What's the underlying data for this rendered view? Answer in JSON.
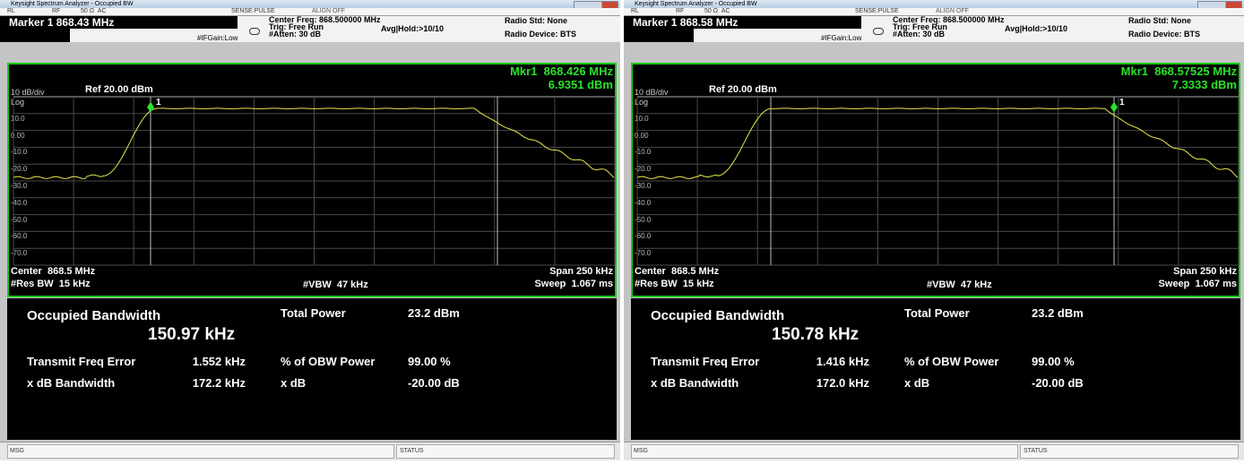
{
  "windows": [
    {
      "title": "Keysight Spectrum Analyzer - Occupied BW",
      "status_row": [
        "RL",
        "RF",
        "50 Ω  AC",
        "SENSE:PULSE",
        "ALIGN OFF"
      ],
      "marker": "Marker 1 868.43 MHz",
      "center_freq": "Center Freq: 868.500000 MHz",
      "trig": "Trig: Free Run",
      "atten": "#Atten: 30 dB",
      "avg_hold": "Avg|Hold:>10/10",
      "if_gain": "#IFGain:Low",
      "radio_std": "Radio Std: None",
      "radio_device": "Radio Device: BTS",
      "scale": "10 dB/div",
      "ref": "Ref 20.00 dBm",
      "log": "Log",
      "y_labels": [
        "10.0",
        "0.00",
        "-10.0",
        "-20.0",
        "-30.0",
        "-40.0",
        "-50.0",
        "-60.0",
        "-70.0"
      ],
      "marker_number": "1",
      "mkr_freq": "Mkr1  868.426 MHz",
      "mkr_level": "6.9351 dBm",
      "center": "Center  868.5 MHz",
      "span": "Span 250 kHz",
      "res_bw": "#Res BW  15 kHz",
      "vbw": "#VBW  47 kHz",
      "sweep": "Sweep  1.067 ms",
      "obw_label": "Occupied Bandwidth",
      "obw_value": "150.97 kHz",
      "total_power_label": "Total Power",
      "total_power": "23.2 dBm",
      "tfe_label": "Transmit Freq Error",
      "tfe": "1.552 kHz",
      "pct_label": "% of OBW Power",
      "pct": "99.00 %",
      "xdb_bw_label": "x dB Bandwidth",
      "xdb_bw": "172.2 kHz",
      "xdb_label": "x dB",
      "xdb": "-20.00 dB",
      "msg": "MSG",
      "status": "STATUS"
    },
    {
      "title": "Keysight Spectrum Analyzer - Occupied BW",
      "status_row": [
        "RL",
        "RF",
        "50 Ω  AC",
        "SENSE:PULSE",
        "ALIGN OFF"
      ],
      "marker": "Marker 1 868.58 MHz",
      "center_freq": "Center Freq: 868.500000 MHz",
      "trig": "Trig: Free Run",
      "atten": "#Atten: 30 dB",
      "avg_hold": "Avg|Hold:>10/10",
      "if_gain": "#IFGain:Low",
      "radio_std": "Radio Std: None",
      "radio_device": "Radio Device: BTS",
      "scale": "10 dB/div",
      "ref": "Ref 20.00 dBm",
      "log": "Log",
      "y_labels": [
        "10.0",
        "0.00",
        "-10.0",
        "-20.0",
        "-30.0",
        "-40.0",
        "-50.0",
        "-60.0",
        "-70.0"
      ],
      "marker_number": "1",
      "mkr_freq": "Mkr1  868.57525 MHz",
      "mkr_level": "7.3333 dBm",
      "center": "Center  868.5 MHz",
      "span": "Span 250 kHz",
      "res_bw": "#Res BW  15 kHz",
      "vbw": "#VBW  47 kHz",
      "sweep": "Sweep  1.067 ms",
      "obw_label": "Occupied Bandwidth",
      "obw_value": "150.78 kHz",
      "total_power_label": "Total Power",
      "total_power": "23.2 dBm",
      "tfe_label": "Transmit Freq Error",
      "tfe": "1.416 kHz",
      "pct_label": "% of OBW Power",
      "pct": "99.00 %",
      "xdb_bw_label": "x dB Bandwidth",
      "xdb_bw": "172.0 kHz",
      "xdb_label": "x dB",
      "xdb": "-20.00 dB",
      "msg": "MSG",
      "status": "STATUS"
    }
  ]
}
